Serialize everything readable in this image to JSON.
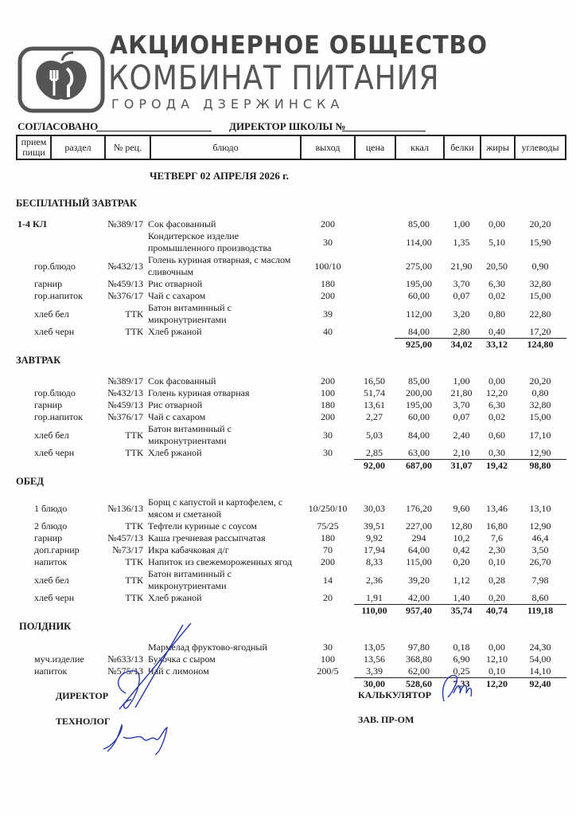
{
  "logo": {
    "line1": "АКЦИОНЕРНОЕ ОБЩЕСТВО",
    "line2": "КОМБИНАТ ПИТАНИЯ",
    "line3": "ГОРОДА ДЗЕРЖИНСКА"
  },
  "approved": "СОГЛАСОВАНО",
  "director_school": "ДИРЕКТОР ШКОЛЫ №",
  "columns": [
    "прием пищи",
    "раздел",
    "№ рец.",
    "блюдо",
    "выход",
    "цена",
    "ккал",
    "белки",
    "жиры",
    "углеводы"
  ],
  "date": "ЧЕТВЕРГ 02 АПРЕЛЯ 2026 г.",
  "sections": [
    {
      "title": "БЕСПЛАТНЫЙ ЗАВТРАК",
      "rows": [
        [
          "1-4 КЛ",
          "",
          "№389/17",
          "Сок фасованный",
          "200",
          "",
          "85,00",
          "1,00",
          "0,00",
          "20,20"
        ],
        [
          "",
          "",
          "",
          "Кондитерское изделие промышленного производства",
          "30",
          "",
          "114,00",
          "1,35",
          "5,10",
          "15,90"
        ],
        [
          "",
          "гор.блюдо",
          "№432/13",
          "Голень куриная отварная, с маслом сливочным",
          "100/10",
          "",
          "275,00",
          "21,90",
          "20,50",
          "0,90"
        ],
        [
          "",
          "гарнир",
          "№459/13",
          "Рис отварной",
          "180",
          "",
          "195,00",
          "3,70",
          "6,30",
          "32,80"
        ],
        [
          "",
          "гор.напиток",
          "№376/17",
          "Чай с сахаром",
          "200",
          "",
          "60,00",
          "0,07",
          "0,02",
          "15,00"
        ],
        [
          "",
          "хлеб бел",
          "ТТК",
          "Батон витаминный с микронутриентами",
          "39",
          "",
          "112,00",
          "3,20",
          "0,80",
          "22,80"
        ],
        [
          "",
          "хлеб черн",
          "ТТК",
          "Хлеб ржаной",
          "40",
          "",
          "84,00",
          "2,80",
          "0,40",
          "17,20"
        ]
      ],
      "total": [
        "",
        "925,00",
        "34,02",
        "33,12",
        "124,80"
      ]
    },
    {
      "title": "ЗАВТРАК",
      "rows": [
        [
          "",
          "",
          "№389/17",
          "Сок фасованный",
          "200",
          "16,50",
          "85,00",
          "1,00",
          "0,00",
          "20,20"
        ],
        [
          "",
          "гор.блюдо",
          "№432/13",
          "Голень куриная отварная",
          "100",
          "51,74",
          "200,00",
          "21,80",
          "12,20",
          "0,80"
        ],
        [
          "",
          "гарнир",
          "№459/13",
          "Рис отварной",
          "180",
          "13,61",
          "195,00",
          "3,70",
          "6,30",
          "32,80"
        ],
        [
          "",
          "гор.напиток",
          "№376/17",
          "Чай с сахаром",
          "200",
          "2,27",
          "60,00",
          "0,07",
          "0,02",
          "15,00"
        ],
        [
          "",
          "хлеб бел",
          "ТТК",
          "Батон витаминный с микронутриентами",
          "30",
          "5,03",
          "84,00",
          "2,40",
          "0,60",
          "17,10"
        ],
        [
          "",
          "хлеб черн",
          "ТТК",
          "Хлеб ржаной",
          "30",
          "2,85",
          "63,00",
          "2,10",
          "0,30",
          "12,90"
        ]
      ],
      "total": [
        "92,00",
        "687,00",
        "31,07",
        "19,42",
        "98,80"
      ]
    },
    {
      "title": "ОБЕД",
      "rows": [
        [
          "",
          "1 блюдо",
          "№136/13",
          "Борщ с капустой и картофелем, с мясом и сметаной",
          "10/250/10",
          "30,03",
          "176,20",
          "9,60",
          "13,46",
          "13,10"
        ],
        [
          "",
          "2 блюдо",
          "ТТК",
          "Тефтели куриные с соусом",
          "75/25",
          "39,51",
          "227,00",
          "12,80",
          "16,80",
          "12,90"
        ],
        [
          "",
          "гарнир",
          "№457/13",
          "Каша гречневая рассыпчатая",
          "180",
          "9,92",
          "294",
          "10,2",
          "7,6",
          "46,4"
        ],
        [
          "",
          "доп.гарнир",
          "№73/17",
          "Икра кабачковая д/г",
          "70",
          "17,94",
          "64,00",
          "0,42",
          "2,30",
          "3,50"
        ],
        [
          "",
          "напиток",
          "ТТК",
          "Напиток из свежемороженных ягод",
          "200",
          "8,33",
          "115,00",
          "0,20",
          "0,10",
          "26,70"
        ],
        [
          "",
          "хлеб бел",
          "ТТК",
          "Батон витаминный с микронутриентами",
          "14",
          "2,36",
          "39,20",
          "1,12",
          "0,28",
          "7,98"
        ],
        [
          "",
          "хлеб черн",
          "ТТК",
          "Хлеб ржаной",
          "20",
          "1,91",
          "42,00",
          "1,40",
          "0,20",
          "8,60"
        ]
      ],
      "total": [
        "110,00",
        "957,40",
        "35,74",
        "40,74",
        "119,18"
      ]
    },
    {
      "title": "ПОЛДНИК",
      "rows": [
        [
          "",
          "",
          "",
          "Мармелад фруктово-ягодный",
          "30",
          "13,05",
          "97,80",
          "0,18",
          "0,00",
          "24,30"
        ],
        [
          "",
          "муч.изделие",
          "№633/13",
          "Булочка с сыром",
          "100",
          "13,56",
          "368,80",
          "6,90",
          "12,10",
          "54,00"
        ],
        [
          "",
          "напиток",
          "№575/13",
          "Чай с лимоном",
          "200/5",
          "3,39",
          "62,00",
          "0,25",
          "0,10",
          "14,10"
        ]
      ],
      "total": [
        "30,00",
        "528,60",
        "7,33",
        "12,20",
        "92,40"
      ]
    }
  ],
  "footer": {
    "director": "ДИРЕКТОР",
    "technologist": "ТЕХНОЛОГ",
    "calculator": "КАЛЬКУЛЯТОР",
    "head_production": "ЗАВ.  ПР-ОМ"
  },
  "colors": {
    "ink": "#1a1a1a",
    "signature": "#2a3aa8",
    "logo": "#555555"
  }
}
